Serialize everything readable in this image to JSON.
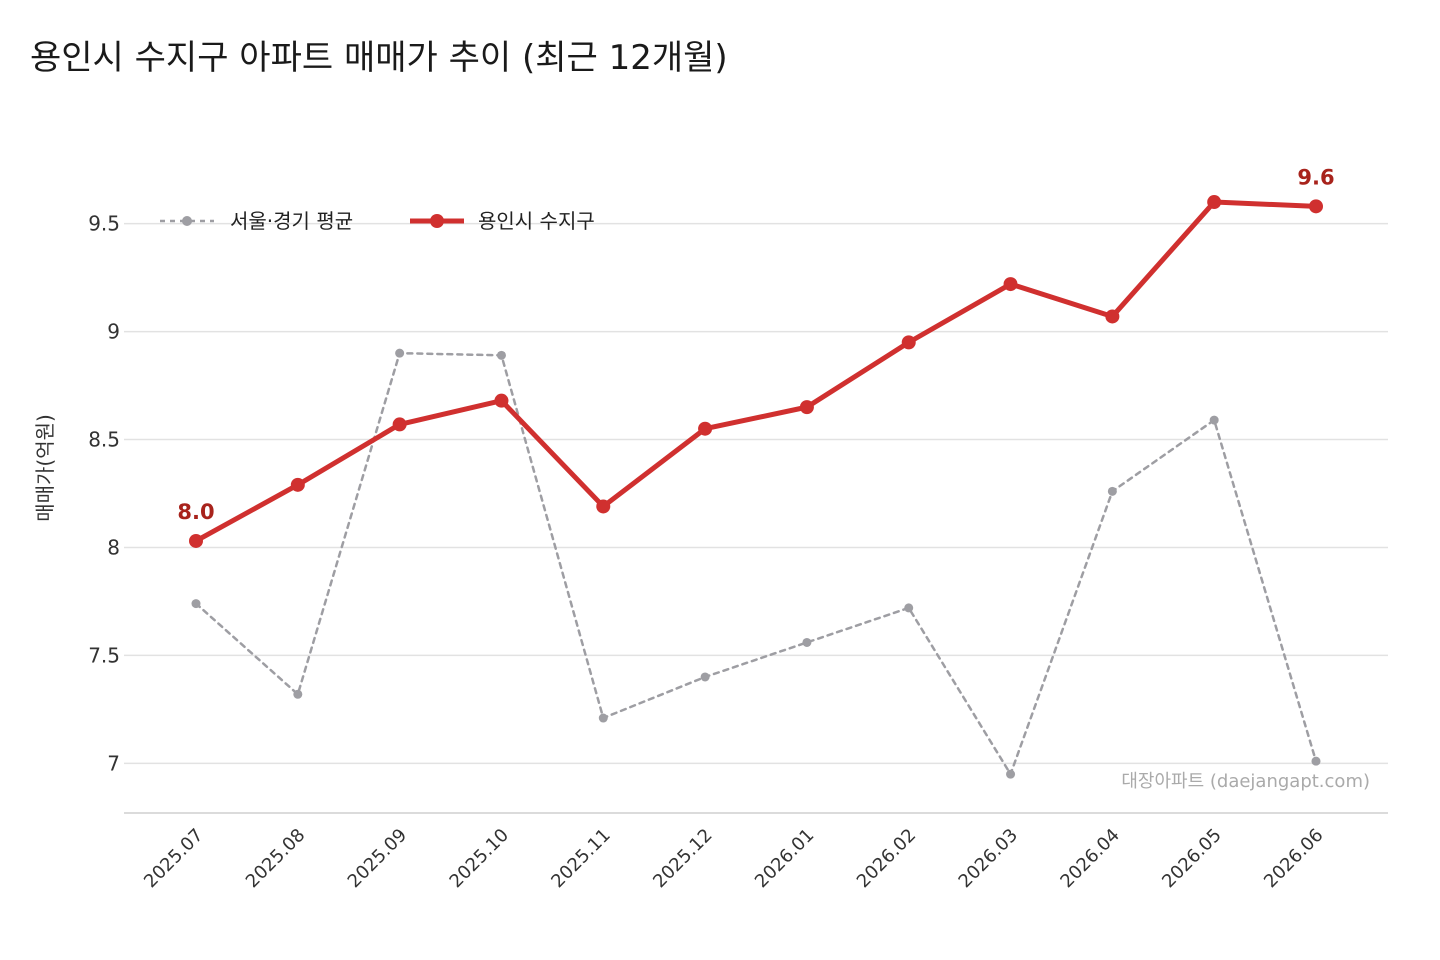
{
  "chart_data": {
    "type": "line",
    "title": "용인시 수지구 아파트 매매가 추이 (최근 12개월)",
    "ylabel": "매매가(억원)",
    "xlabel": "",
    "ylim": [
      6.77,
      9.98
    ],
    "yticks": [
      7,
      7.5,
      8,
      8.5,
      9,
      9.5
    ],
    "ytick_labels": [
      "7",
      "7.5",
      "8",
      "8.5",
      "9",
      "9.5"
    ],
    "grid": true,
    "legend_position": "top-left",
    "categories": [
      "2025.07",
      "2025.08",
      "2025.09",
      "2025.10",
      "2025.11",
      "2025.12",
      "2026.01",
      "2026.02",
      "2026.03",
      "2026.04",
      "2026.05",
      "2026.06"
    ],
    "series": [
      {
        "name": "서울·경기 평균",
        "color": "#9e9ea3",
        "style": "dashed",
        "values": [
          7.74,
          7.32,
          8.9,
          8.89,
          7.21,
          7.4,
          7.56,
          7.72,
          6.95,
          8.26,
          8.59,
          7.01
        ]
      },
      {
        "name": "용인시 수지구",
        "color": "#d0302f",
        "style": "solid",
        "values": [
          8.03,
          8.29,
          8.57,
          8.68,
          8.19,
          8.55,
          8.65,
          8.95,
          9.22,
          9.07,
          9.6,
          9.58
        ]
      }
    ],
    "annotations": [
      {
        "text": "8.0",
        "series": 1,
        "index": 0
      },
      {
        "text": "9.6",
        "series": 1,
        "index": 11
      }
    ],
    "annotation_color": "#a8231c",
    "watermark": "대장아파트 (daejangapt.com)"
  }
}
